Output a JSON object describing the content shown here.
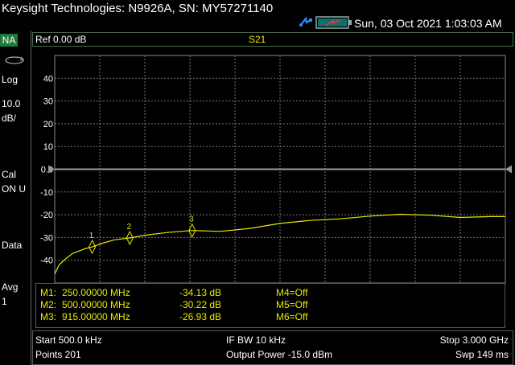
{
  "header": {
    "title": "Keysight Technologies: N9926A, SN: MY57271140",
    "datetime": "Sun, 03 Oct 2021 1:03:03 AM"
  },
  "left_panel": {
    "mode_badge": "NA",
    "log_label": "Log",
    "scale_value": "10.0",
    "scale_unit": "dB/",
    "cal_label": "Cal",
    "cal_state": "ON U",
    "data_label": "Data",
    "avg_label": "Avg",
    "avg_value": "1"
  },
  "trace_header": {
    "reference": "Ref 0.00 dB",
    "measurement": "S21"
  },
  "chart_data": {
    "type": "line",
    "ylim": [
      -50,
      50
    ],
    "y_ticks": [
      "40",
      "30",
      "20",
      "10",
      "0.0",
      "-10",
      "-20",
      "-30",
      "-40"
    ],
    "x_range_mhz": [
      0.5,
      3000
    ],
    "reference_level": 0,
    "grid": true,
    "trace_color": "#e8e800",
    "series": [
      {
        "x_mhz": [
          0.5,
          30,
          80,
          120,
          160,
          200,
          250,
          320,
          400,
          500,
          600,
          750,
          915,
          1100,
          1300,
          1500,
          1700,
          1900,
          2100,
          2300,
          2500,
          2700,
          2900,
          3000
        ],
        "y_db": [
          -46,
          -42,
          -39,
          -37,
          -36,
          -35,
          -34.13,
          -32.5,
          -31,
          -30.22,
          -29,
          -27.8,
          -26.93,
          -27.3,
          -26,
          -23.8,
          -22.5,
          -21.8,
          -20.6,
          -19.8,
          -20.2,
          -21.2,
          -20.8,
          -20.8
        ]
      }
    ],
    "markers": [
      {
        "label": "1",
        "x_mhz": 250,
        "y_db": -34.13
      },
      {
        "label": "2",
        "x_mhz": 500,
        "y_db": -30.22
      },
      {
        "label": "3",
        "x_mhz": 915,
        "y_db": -26.93
      }
    ]
  },
  "marker_table": [
    {
      "name": "M1:",
      "freq": "250.00000 MHz",
      "value": "-34.13 dB",
      "other": "M4=Off"
    },
    {
      "name": "M2:",
      "freq": "500.00000 MHz",
      "value": "-30.22 dB",
      "other": "M5=Off"
    },
    {
      "name": "M3:",
      "freq": "915.00000 MHz",
      "value": "-26.93 dB",
      "other": "M6=Off"
    }
  ],
  "footer": {
    "start": "Start 500.0 kHz",
    "points": "Points 201",
    "ifbw": "IF BW 10 kHz",
    "output_power": "Output Power -15.0 dBm",
    "stop": "Stop 3.000 GHz",
    "sweep": "Swp 149 ms"
  }
}
